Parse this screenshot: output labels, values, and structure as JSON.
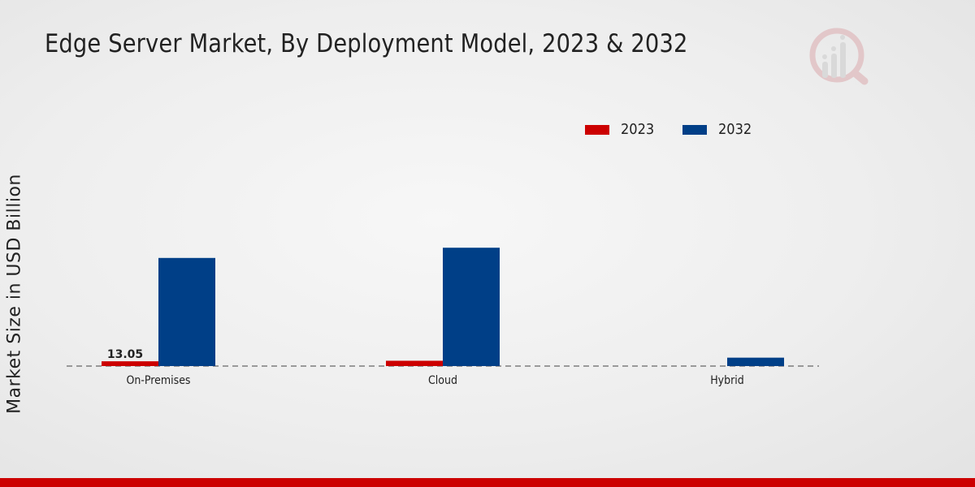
{
  "title": "Edge Server Market, By Deployment Model, 2023 & 2032",
  "legend": {
    "items": [
      {
        "label": "2023",
        "color": "#cc0000"
      },
      {
        "label": "2032",
        "color": "#003f87"
      }
    ]
  },
  "brand": {
    "logo_icon": "research-chart-logo-icon",
    "footer_color": "#cc0000"
  },
  "chart_data": {
    "type": "bar",
    "title": "Edge Server Market, By Deployment Model, 2023 & 2032",
    "xlabel": "",
    "ylabel": "Market Size in USD Billion",
    "categories": [
      "On-Premises",
      "Cloud",
      "Hybrid"
    ],
    "series": [
      {
        "name": "2023",
        "color": "#cc0000",
        "values": [
          13.05,
          14.5,
          0
        ]
      },
      {
        "name": "2032",
        "color": "#003f87",
        "values": [
          296,
          324,
          23
        ]
      }
    ],
    "data_labels": [
      {
        "series": "2023",
        "category": "On-Premises",
        "text": "13.05"
      }
    ],
    "ylim": [
      0,
      400
    ],
    "grid": false,
    "baseline_style": "dashed",
    "legend_position": "top-right"
  }
}
